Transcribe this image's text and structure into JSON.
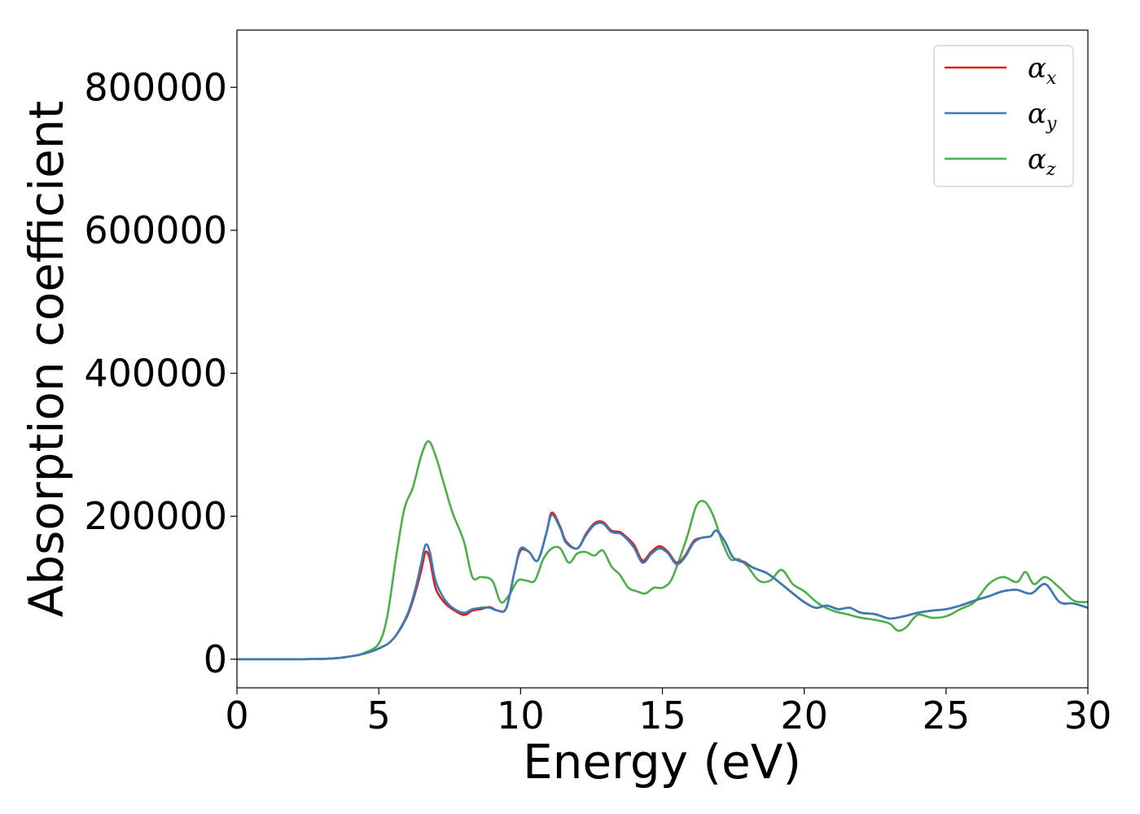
{
  "chart_data": {
    "type": "line",
    "xlabel": "Energy (eV)",
    "ylabel": "Absorption coefficient",
    "xlim": [
      0,
      30
    ],
    "ylim": [
      -40000,
      880000
    ],
    "xticks": [
      0,
      5,
      10,
      15,
      20,
      25,
      30
    ],
    "yticks": [
      0,
      200000,
      400000,
      600000,
      800000
    ],
    "grid": false,
    "legend_position": "top-right",
    "series": [
      {
        "name": "α_x",
        "legend_base": "α",
        "legend_sub": "x",
        "color": "#e41a1c",
        "x": [
          0,
          3,
          4,
          4.5,
          5,
          5.5,
          6,
          6.3,
          6.5,
          6.65,
          6.8,
          7,
          7.3,
          7.6,
          8,
          8.3,
          8.6,
          8.9,
          9.2,
          9.5,
          9.8,
          10.0,
          10.3,
          10.6,
          10.9,
          11.1,
          11.4,
          11.6,
          12.0,
          12.3,
          12.6,
          12.9,
          13.2,
          13.5,
          13.7,
          14.0,
          14.3,
          14.6,
          14.9,
          15.2,
          15.5,
          15.8,
          16.1,
          16.4,
          16.7,
          16.9,
          17.2,
          17.5,
          17.9,
          18.2,
          18.7,
          19.2,
          19.6,
          20.0,
          20.4,
          20.8,
          21.2,
          21.6,
          22.0,
          22.5,
          23.0,
          23.5,
          24.0,
          24.5,
          25.0,
          25.5,
          26.0,
          26.5,
          27.0,
          27.5,
          28.0,
          28.5,
          29.0,
          29.5,
          30.0
        ],
        "y": [
          0,
          500,
          4000,
          8000,
          15000,
          28000,
          60000,
          95000,
          125000,
          150000,
          140000,
          100000,
          80000,
          70000,
          62000,
          68000,
          70000,
          73000,
          68000,
          72000,
          125000,
          152000,
          150000,
          138000,
          175000,
          205000,
          185000,
          165000,
          155000,
          175000,
          190000,
          192000,
          180000,
          178000,
          172000,
          160000,
          138000,
          150000,
          158000,
          150000,
          135000,
          145000,
          165000,
          170000,
          172000,
          180000,
          165000,
          142000,
          135000,
          128000,
          120000,
          105000,
          92000,
          80000,
          72000,
          75000,
          70000,
          72000,
          65000,
          63000,
          57000,
          60000,
          65000,
          68000,
          70000,
          75000,
          82000,
          88000,
          95000,
          97000,
          92000,
          105000,
          80000,
          78000,
          72000
        ]
      },
      {
        "name": "α_y",
        "legend_base": "α",
        "legend_sub": "y",
        "color": "#377eb8",
        "x": [
          0,
          3,
          4,
          4.5,
          5,
          5.5,
          6,
          6.3,
          6.5,
          6.65,
          6.8,
          7,
          7.3,
          7.6,
          8,
          8.3,
          8.6,
          8.9,
          9.2,
          9.5,
          9.8,
          10.0,
          10.3,
          10.6,
          10.9,
          11.1,
          11.4,
          11.6,
          12.0,
          12.3,
          12.6,
          12.9,
          13.2,
          13.5,
          13.7,
          14.0,
          14.3,
          14.6,
          14.9,
          15.2,
          15.5,
          15.8,
          16.1,
          16.4,
          16.7,
          16.9,
          17.2,
          17.5,
          17.9,
          18.2,
          18.7,
          19.2,
          19.6,
          20.0,
          20.4,
          20.8,
          21.2,
          21.6,
          22.0,
          22.5,
          23.0,
          23.5,
          24.0,
          24.5,
          25.0,
          25.5,
          26.0,
          26.5,
          27.0,
          27.5,
          28.0,
          28.5,
          29.0,
          29.5,
          30.0
        ],
        "y": [
          0,
          500,
          4000,
          8000,
          15000,
          28000,
          62000,
          100000,
          135000,
          160000,
          150000,
          110000,
          85000,
          72000,
          65000,
          70000,
          72000,
          72000,
          68000,
          72000,
          125000,
          155000,
          150000,
          138000,
          175000,
          202000,
          183000,
          163000,
          155000,
          173000,
          188000,
          190000,
          178000,
          176000,
          170000,
          156000,
          135000,
          147000,
          155000,
          148000,
          133000,
          143000,
          163000,
          170000,
          172000,
          180000,
          165000,
          142000,
          136000,
          128000,
          120000,
          105000,
          92000,
          80000,
          72000,
          75000,
          70000,
          72000,
          65000,
          63000,
          57000,
          60000,
          65000,
          68000,
          70000,
          75000,
          82000,
          88000,
          95000,
          97000,
          92000,
          105000,
          80000,
          78000,
          72000
        ]
      },
      {
        "name": "α_z",
        "legend_base": "α",
        "legend_sub": "z",
        "color": "#4daf4a",
        "x": [
          0,
          3,
          4,
          4.5,
          5,
          5.3,
          5.6,
          5.9,
          6.2,
          6.5,
          6.75,
          7.0,
          7.3,
          7.6,
          8.0,
          8.3,
          8.6,
          9.0,
          9.3,
          9.6,
          9.9,
          10.2,
          10.5,
          10.8,
          11.1,
          11.4,
          11.7,
          12.0,
          12.3,
          12.6,
          12.9,
          13.2,
          13.5,
          13.8,
          14.1,
          14.4,
          14.7,
          15.0,
          15.3,
          15.6,
          15.9,
          16.2,
          16.5,
          16.8,
          17.1,
          17.4,
          17.7,
          18.0,
          18.4,
          18.8,
          19.2,
          19.6,
          20.0,
          20.5,
          21.0,
          21.5,
          22.0,
          22.5,
          23.0,
          23.3,
          23.6,
          24.0,
          24.5,
          25.0,
          25.5,
          26.0,
          26.5,
          27.0,
          27.5,
          27.8,
          28.1,
          28.5,
          29.0,
          29.5,
          30.0
        ],
        "y": [
          0,
          500,
          4000,
          9000,
          22000,
          60000,
          140000,
          210000,
          240000,
          285000,
          305000,
          285000,
          245000,
          205000,
          165000,
          115000,
          115000,
          110000,
          80000,
          90000,
          110000,
          110000,
          110000,
          140000,
          155000,
          155000,
          135000,
          148000,
          150000,
          145000,
          152000,
          130000,
          118000,
          100000,
          95000,
          92000,
          100000,
          100000,
          110000,
          140000,
          175000,
          215000,
          220000,
          200000,
          165000,
          140000,
          140000,
          130000,
          110000,
          110000,
          125000,
          105000,
          95000,
          78000,
          68000,
          63000,
          58000,
          55000,
          50000,
          40000,
          45000,
          62000,
          58000,
          60000,
          70000,
          80000,
          105000,
          115000,
          108000,
          122000,
          105000,
          115000,
          100000,
          82000,
          80000
        ]
      }
    ]
  }
}
